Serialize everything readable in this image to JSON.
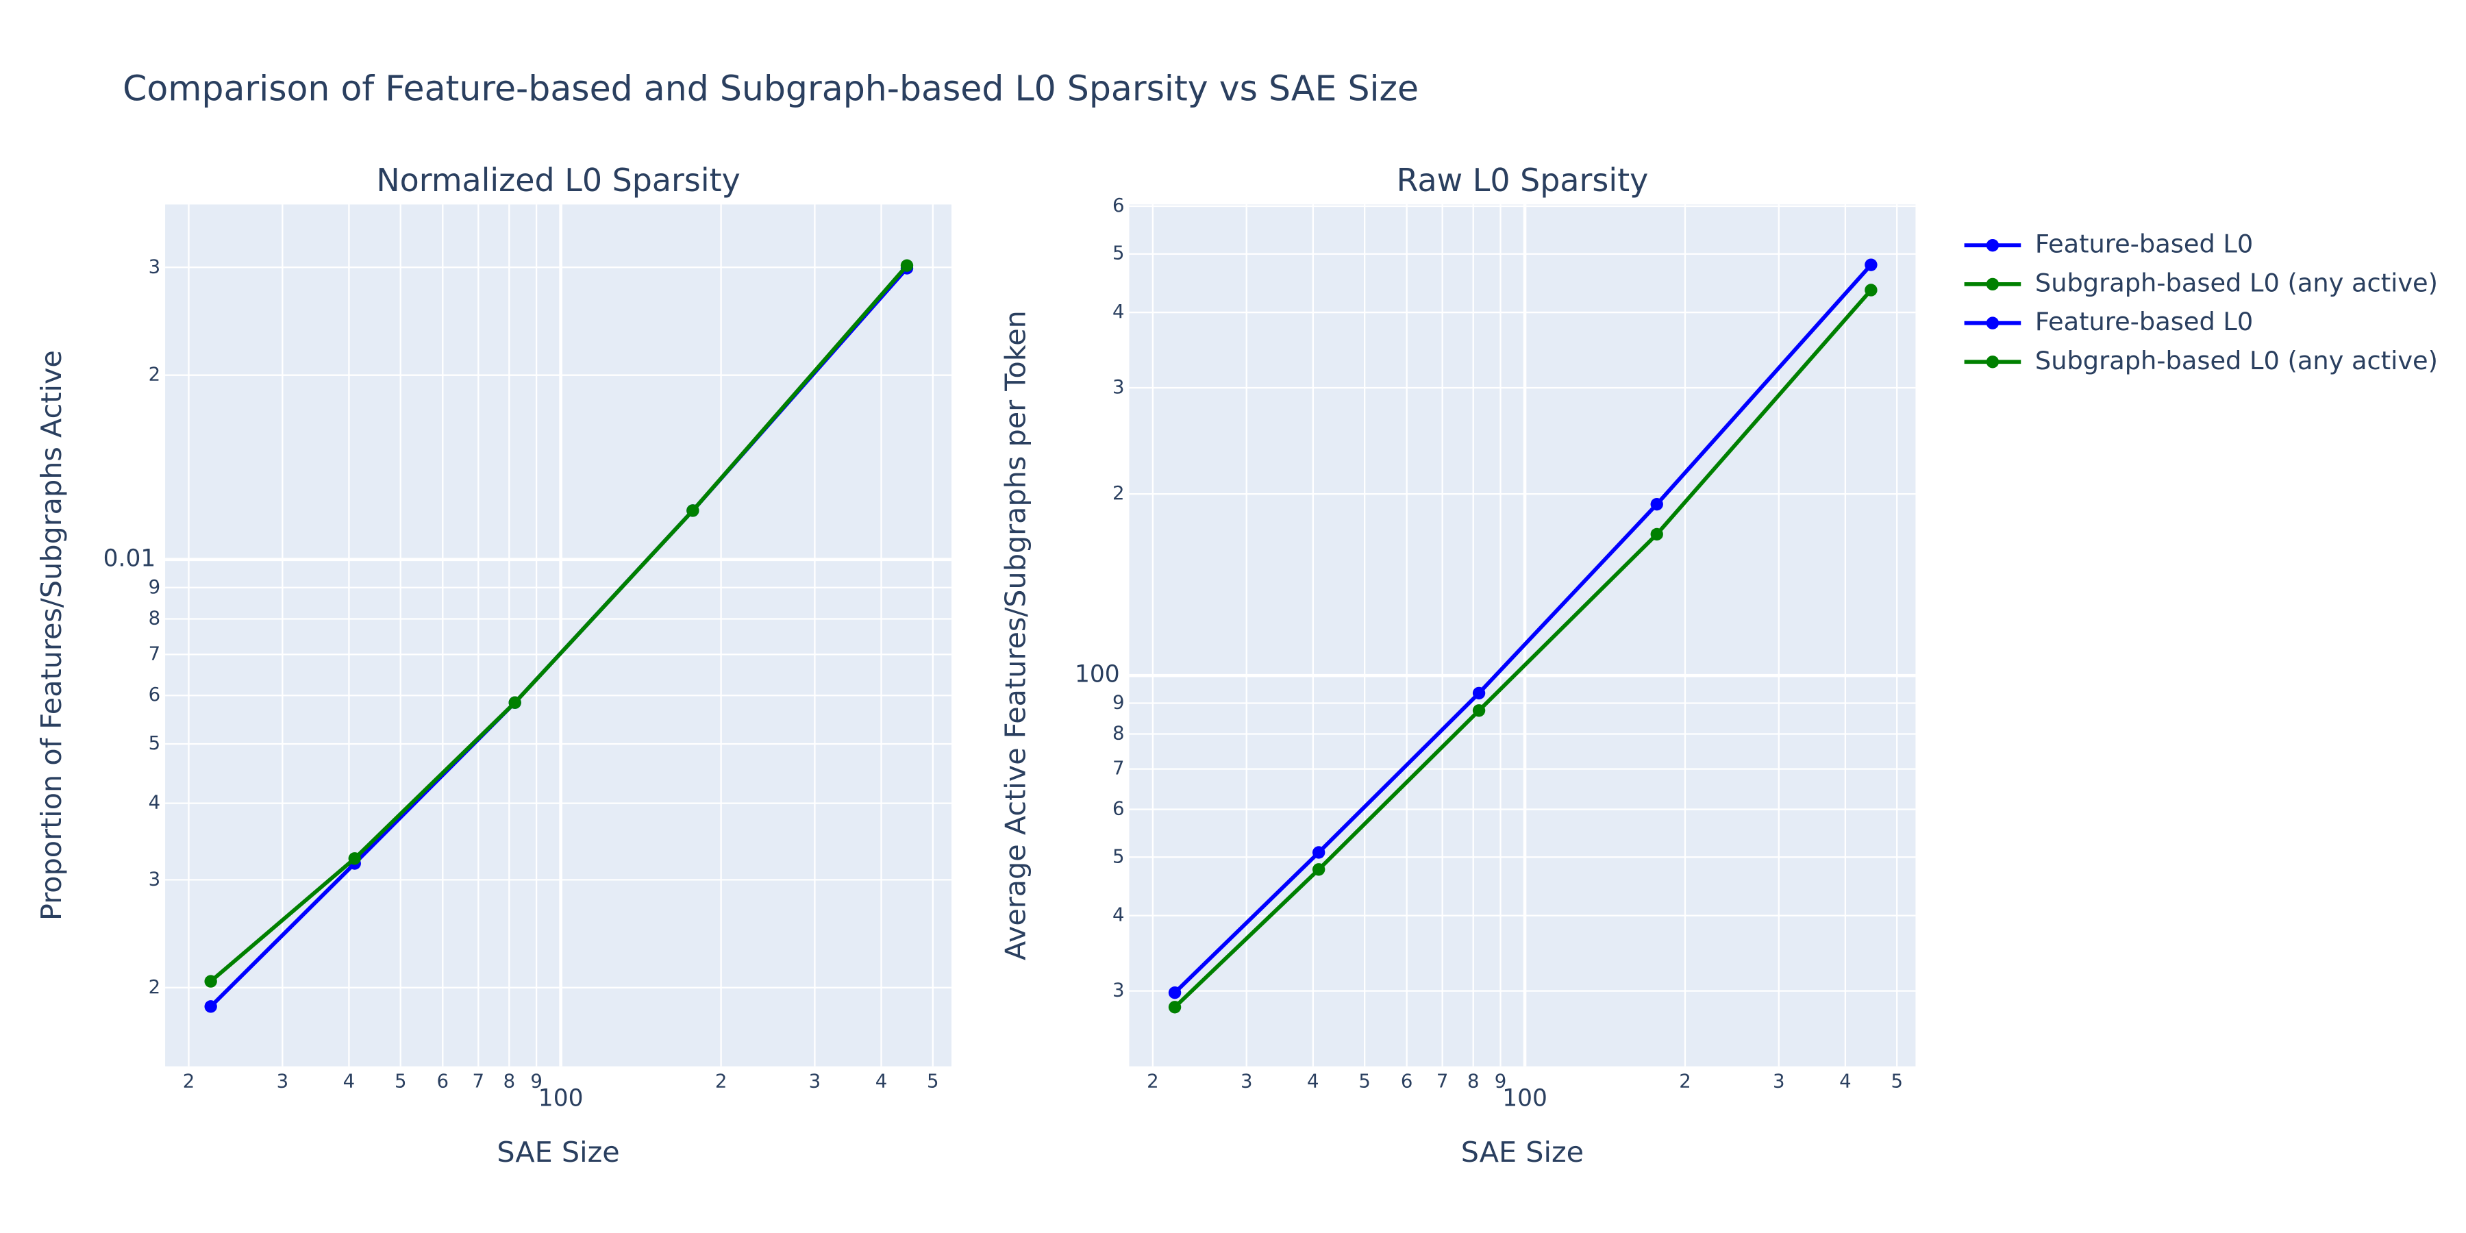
{
  "title": "Comparison of Feature-based and Subgraph-based L0 Sparsity vs SAE Size",
  "chart_data": [
    {
      "type": "line",
      "title": "Normalized L0 Sparsity",
      "x_label": "SAE Size",
      "y_label": "Proportion of Features/Subgraphs Active",
      "log_x": true,
      "log_y": true,
      "grid": true,
      "x": [
        22,
        41,
        82,
        177,
        447
      ],
      "xlim": [
        18.06,
        542
      ],
      "xticks": [
        {
          "value": 20,
          "label": "2"
        },
        {
          "value": 30,
          "label": "3"
        },
        {
          "value": 40,
          "label": "4"
        },
        {
          "value": 50,
          "label": "5"
        },
        {
          "value": 60,
          "label": "6"
        },
        {
          "value": 70,
          "label": "7"
        },
        {
          "value": 80,
          "label": "8"
        },
        {
          "value": 90,
          "label": "9"
        },
        100,
        {
          "value": 200,
          "label": "2"
        },
        {
          "value": 300,
          "label": "3"
        },
        {
          "value": 400,
          "label": "4"
        },
        {
          "value": 500,
          "label": "5"
        }
      ],
      "ylim": [
        0.001488,
        0.038
      ],
      "yticks": [
        {
          "value": 0.002,
          "label": "2"
        },
        {
          "value": 0.003,
          "label": "3"
        },
        {
          "value": 0.004,
          "label": "4"
        },
        {
          "value": 0.005,
          "label": "5"
        },
        {
          "value": 0.006,
          "label": "6"
        },
        {
          "value": 0.007,
          "label": "7"
        },
        {
          "value": 0.008,
          "label": "8"
        },
        {
          "value": 0.009,
          "label": "9"
        },
        0.01,
        {
          "value": 0.02,
          "label": "2"
        },
        {
          "value": 0.03,
          "label": "3"
        }
      ],
      "series": [
        {
          "name": "Feature-based L0",
          "color": "#0000ff",
          "values": [
            0.001863,
            0.00319,
            0.00584,
            0.01202,
            0.0299
          ]
        },
        {
          "name": "Subgraph-based L0 (any active)",
          "color": "#008000",
          "values": [
            0.002048,
            0.00325,
            0.00584,
            0.01202,
            0.0302
          ]
        }
      ]
    },
    {
      "type": "line",
      "title": "Raw L0 Sparsity",
      "x_label": "SAE Size",
      "y_label": "Average Active Features/Subgraphs per Token",
      "log_x": true,
      "log_y": true,
      "grid": true,
      "x": [
        22,
        41,
        82,
        177,
        447
      ],
      "xlim": [
        18.06,
        542
      ],
      "xticks": [
        {
          "value": 20,
          "label": "2"
        },
        {
          "value": 30,
          "label": "3"
        },
        {
          "value": 40,
          "label": "4"
        },
        {
          "value": 50,
          "label": "5"
        },
        {
          "value": 60,
          "label": "6"
        },
        {
          "value": 70,
          "label": "7"
        },
        {
          "value": 80,
          "label": "8"
        },
        {
          "value": 90,
          "label": "9"
        },
        100,
        {
          "value": 200,
          "label": "2"
        },
        {
          "value": 300,
          "label": "3"
        },
        {
          "value": 400,
          "label": "4"
        },
        {
          "value": 500,
          "label": "5"
        }
      ],
      "ylim": [
        22.5,
        604
      ],
      "yticks": [
        {
          "value": 30,
          "label": "3"
        },
        {
          "value": 40,
          "label": "4"
        },
        {
          "value": 50,
          "label": "5"
        },
        {
          "value": 60,
          "label": "6"
        },
        {
          "value": 70,
          "label": "7"
        },
        {
          "value": 80,
          "label": "8"
        },
        {
          "value": 90,
          "label": "9"
        },
        100,
        {
          "value": 200,
          "label": "2"
        },
        {
          "value": 300,
          "label": "3"
        },
        {
          "value": 400,
          "label": "4"
        },
        {
          "value": 500,
          "label": "5"
        },
        {
          "value": 600,
          "label": "6"
        }
      ],
      "series": [
        {
          "name": "Feature-based L0",
          "color": "#0000ff",
          "values": [
            29.8,
            50.9,
            93.5,
            192.3,
            479.6
          ]
        },
        {
          "name": "Subgraph-based L0 (any active)",
          "color": "#008000",
          "values": [
            28.2,
            47.7,
            87.5,
            171.5,
            435.6
          ]
        }
      ]
    }
  ]
}
